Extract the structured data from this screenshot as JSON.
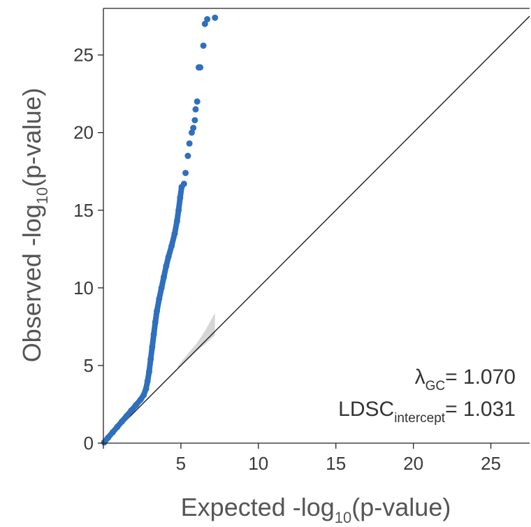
{
  "chart_data": {
    "type": "scatter",
    "title": "",
    "xlabel": {
      "main": "Expected -log",
      "sub": "10",
      "tail": "(p-value)"
    },
    "ylabel": {
      "main": "Observed -log",
      "sub": "10",
      "tail": "(p-value)"
    },
    "xlim": [
      0,
      27.5
    ],
    "ylim": [
      0,
      28
    ],
    "xticks": [
      0,
      5,
      10,
      15,
      20,
      25
    ],
    "yticks": [
      0,
      5,
      10,
      15,
      20,
      25
    ],
    "xtick_labels": [
      "5",
      "10",
      "15",
      "20",
      "25"
    ],
    "ytick_labels": [
      "0",
      "5",
      "10",
      "15",
      "20",
      "25"
    ],
    "grid": false,
    "reference_line": {
      "from": [
        0,
        0
      ],
      "to": [
        27.5,
        27.5
      ]
    },
    "confidence_band": {
      "x": [
        4.8,
        5.4,
        6.0,
        6.6,
        7.2
      ],
      "lower": [
        4.8,
        5.35,
        5.9,
        6.4,
        6.95
      ],
      "upper": [
        4.95,
        5.7,
        6.4,
        7.3,
        8.4
      ]
    },
    "series": [
      {
        "color": "#2f6fbd",
        "x": [
          0.05,
          0.3,
          0.6,
          0.9,
          1.2,
          1.5,
          1.8,
          2.1,
          2.4,
          2.6,
          2.75,
          2.85,
          2.95,
          3.05,
          3.15,
          3.25,
          3.35,
          3.45,
          3.6,
          3.75,
          3.9,
          4.05,
          4.2,
          4.4,
          4.6,
          4.75,
          4.85,
          4.95,
          5.05,
          5.2,
          5.3,
          5.45,
          5.55,
          5.7,
          5.8,
          5.9,
          5.95,
          6.05,
          6.15,
          6.25,
          6.45,
          6.55,
          6.7,
          7.2
        ],
        "y": [
          0.05,
          0.35,
          0.7,
          1.05,
          1.4,
          1.75,
          2.1,
          2.45,
          2.8,
          3.1,
          3.5,
          4.0,
          4.6,
          5.4,
          6.2,
          7.0,
          7.8,
          8.5,
          9.3,
          10.0,
          10.7,
          11.4,
          12.0,
          12.7,
          13.5,
          14.3,
          15.0,
          15.8,
          16.5,
          16.7,
          17.4,
          18.5,
          19.3,
          20.0,
          20.3,
          20.8,
          21.5,
          22.0,
          24.2,
          24.2,
          25.6,
          27.0,
          27.3,
          27.4
        ]
      }
    ],
    "annotations": [
      {
        "main": "λ",
        "sub": "GC",
        "value": "= 1.070"
      },
      {
        "main": "LDSC",
        "sub": "intercept",
        "value": "= 1.031"
      }
    ]
  }
}
